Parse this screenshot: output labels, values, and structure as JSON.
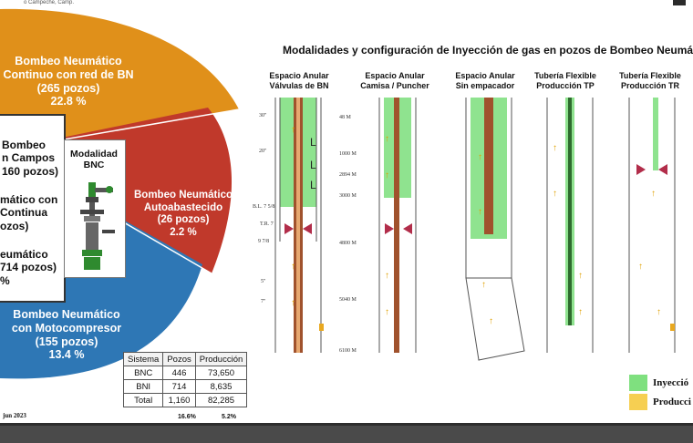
{
  "header": {
    "text": "o Campeche, Camp."
  },
  "pie": {
    "slices": [
      {
        "lines": [
          "Bombeo Neumático",
          "Continuo con red de BN",
          "(265 pozos)",
          "22.8 %"
        ],
        "color": "#e0901a"
      },
      {
        "lines": [
          "Bombeo Neumático",
          "Autoabastecido",
          "(26 pozos)",
          "2.2 %"
        ],
        "color": "#c0392b"
      },
      {
        "lines": [
          "Bombeo Neumático",
          "con Motocompresor",
          "(155 pozos)",
          "13.4 %"
        ],
        "color": "#2e77b5"
      }
    ]
  },
  "legend": {
    "block1": [
      "Bombeo",
      "n Campos",
      "160 pozos)"
    ],
    "block2": [
      "mático con",
      "Continua",
      "ozos)"
    ],
    "block3": [
      "eumático",
      "714 pozos)",
      "%"
    ]
  },
  "bnc": {
    "lines": [
      "Modalidad",
      "BNC"
    ]
  },
  "diagrams": {
    "title": "Modalidades y configuración de Inyección de gas en pozos de Bombeo Neumá",
    "wells": [
      {
        "lines": [
          "Espacio Anular",
          "Válvulas de BN"
        ]
      },
      {
        "lines": [
          "Espacio Anular",
          "Camisa / Puncher"
        ]
      },
      {
        "lines": [
          "Espacio Anular",
          "Sin empacador"
        ]
      },
      {
        "lines": [
          "Tubería Flexible",
          "Producción TP"
        ]
      },
      {
        "lines": [
          "Tubería Flexible",
          "Producción TR"
        ]
      }
    ],
    "depth_labels": [
      "30\"",
      "20\"",
      "B.L. 7 5/8",
      "T.R. 7",
      "9 7/8",
      "5\"",
      "7\"",
      "48 M",
      "1000 M",
      "2894 M",
      "3000 M",
      "4800 M",
      "5040 M",
      "6100 M"
    ]
  },
  "table": {
    "headers": [
      "Sistema",
      "Pozos",
      "Producción"
    ],
    "rows": [
      [
        "BNC",
        "446",
        "73,650"
      ],
      [
        "BNI",
        "714",
        "8,635"
      ],
      [
        "Total",
        "1,160",
        "82,285"
      ]
    ],
    "footer": [
      "16.6%",
      "5.2%"
    ]
  },
  "date": "jun 2023",
  "legend_right": {
    "injection": "Inyecció",
    "production": "Producci"
  },
  "colors": {
    "orange": "#e0901a",
    "red": "#c0392b",
    "blue": "#2e77b5",
    "injection": "#7fe07f",
    "production": "#f6cf52",
    "tubing": "#a0522d"
  }
}
